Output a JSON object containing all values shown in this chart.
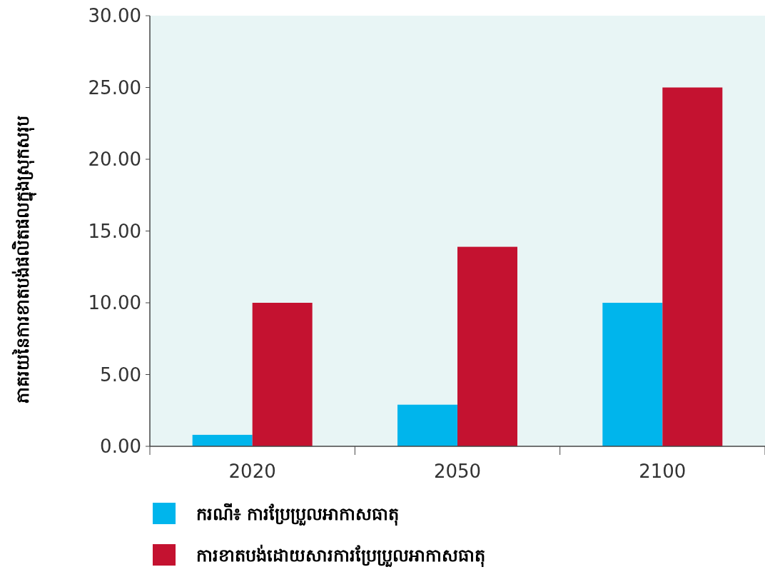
{
  "chart_data": {
    "type": "bar",
    "ylabel": "ភាគរយនៃការខាតបង់ផលិតផលក្នុងស្រុកសរុប",
    "categories": [
      "2020",
      "2050",
      "2100"
    ],
    "series": [
      {
        "name": "ករណី៖ ការប្រែប្រួលអាកាសធាតុ",
        "color": "#00b5ec",
        "values": [
          0.8,
          2.9,
          10.0
        ]
      },
      {
        "name": "ការខាតបង់ដោយសារការប្រែប្រួលអាកាសធាតុ",
        "color": "#c41230",
        "values": [
          10.0,
          13.9,
          25.0
        ]
      }
    ],
    "ylim": [
      0,
      30
    ],
    "yticks": [
      {
        "value": 0,
        "label": "0.00"
      },
      {
        "value": 5,
        "label": "5.00"
      },
      {
        "value": 10,
        "label": "10.00"
      },
      {
        "value": 15,
        "label": "15.00"
      },
      {
        "value": 20,
        "label": "20.00"
      },
      {
        "value": 25,
        "label": "25.00"
      },
      {
        "value": 30,
        "label": "30.00"
      }
    ],
    "grid": false,
    "legend": "bottom"
  }
}
